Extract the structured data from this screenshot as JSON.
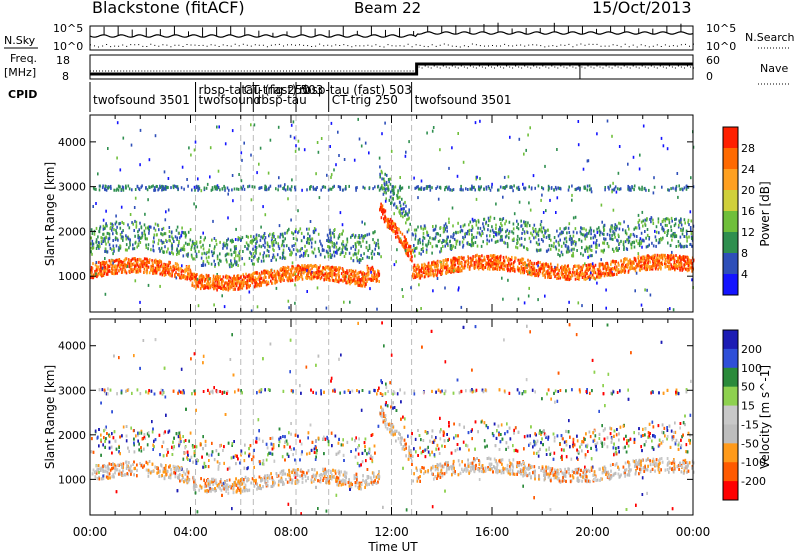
{
  "header": {
    "site": "Blackstone (fitACF)",
    "beam": "Beam 22",
    "date": "15/Oct/2013"
  },
  "aux_panels": {
    "nsky_label": "N.Sky",
    "nsky_ticks": [
      "10^5",
      "10^0"
    ],
    "nsearch_label": "N.Search",
    "nsearch_ticks": [
      "10^5",
      "10^0"
    ],
    "freq_label_1": "Freq.",
    "freq_label_2": "[MHz]",
    "freq_ticks": [
      "18",
      "8"
    ],
    "nave_label": "Nave",
    "nave_ticks": [
      "60",
      "0"
    ],
    "cpid_label": "CPID",
    "cpid_segments": [
      {
        "text": "twofsound 3501",
        "start_h": 0.0
      },
      {
        "text": "rbsp-tatau (fast) 503",
        "start_h": 4.2
      },
      {
        "text": "twofsound",
        "start_h": 4.2
      },
      {
        "text": "CT-trig 250",
        "start_h": 6.0
      },
      {
        "text": "rbsp-tau",
        "start_h": 6.5
      },
      {
        "text": "rbsp-tau (fast) 503",
        "start_h": 8.2
      },
      {
        "text": "CT-trig 250",
        "start_h": 9.5
      },
      {
        "text": "twofsound 3501",
        "start_h": 12.8
      }
    ]
  },
  "colors": {
    "power": [
      "#1414ff",
      "#2e4fb8",
      "#2f8f4f",
      "#6fbf3a",
      "#cfcf3a",
      "#ffa020",
      "#ff6a00",
      "#ff2000"
    ],
    "velocity": [
      "#1c1cb4",
      "#2f4fd8",
      "#2a8a3a",
      "#8ed14f",
      "#c8c8c8",
      "#bdbdbd",
      "#ff9a1a",
      "#ff5a00",
      "#ff0000"
    ]
  },
  "chart_data": [
    {
      "type": "heatmap",
      "title": "Power",
      "xlabel": "",
      "ylabel": "Slant Range [km]",
      "xlim": [
        0,
        24
      ],
      "ylim": [
        200,
        4600
      ],
      "y_ticks": [
        "1000",
        "2000",
        "3000",
        "4000"
      ],
      "colorbar_label": "Power [dB]",
      "colorbar_ticks": [
        "4",
        "8",
        "12",
        "16",
        "20",
        "24",
        "28"
      ],
      "colorbar_range": [
        0,
        32
      ],
      "bands": [
        {
          "range_km": [
            1000,
            1300
          ],
          "value": 28
        },
        {
          "range_km": [
            1500,
            1900
          ],
          "value": 12
        },
        {
          "range_km": [
            2000,
            2400
          ],
          "value": 8
        },
        {
          "range_km": [
            2950,
            3050
          ],
          "value": 6
        }
      ]
    },
    {
      "type": "heatmap",
      "title": "Velocity",
      "xlabel": "Time UT",
      "ylabel": "Slant Range [km]",
      "xlim": [
        0,
        24
      ],
      "ylim": [
        200,
        4600
      ],
      "x_ticks": [
        "00:00",
        "04:00",
        "08:00",
        "12:00",
        "16:00",
        "20:00",
        "00:00"
      ],
      "y_ticks": [
        "1000",
        "2000",
        "3000",
        "4000"
      ],
      "colorbar_label": "Velocity [m s^-1]",
      "colorbar_ticks": [
        "200",
        "100",
        "50",
        "15",
        "-15",
        "-50",
        "-100",
        "-200"
      ],
      "colorbar_range": [
        -250,
        250
      ],
      "bands": [
        {
          "range_km": [
            1000,
            1300
          ],
          "value": -50
        },
        {
          "range_km": [
            1300,
            1500
          ],
          "value": 0
        },
        {
          "range_km": [
            1500,
            1900
          ],
          "value": 0
        },
        {
          "range_km": [
            2950,
            3050
          ],
          "value": 20
        }
      ]
    }
  ]
}
